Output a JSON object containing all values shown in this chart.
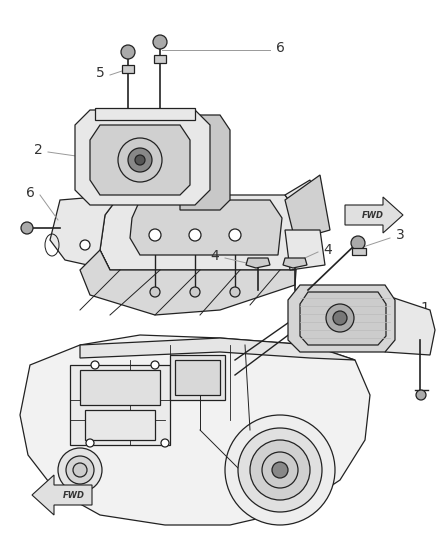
{
  "background_color": "#ffffff",
  "fig_width": 4.38,
  "fig_height": 5.33,
  "dpi": 100,
  "label_fontsize": 10,
  "line_color": "#999999",
  "drawing_color": "#222222",
  "light_fill": "#e8e8e8",
  "mid_fill": "#cccccc",
  "dark_fill": "#aaaaaa"
}
